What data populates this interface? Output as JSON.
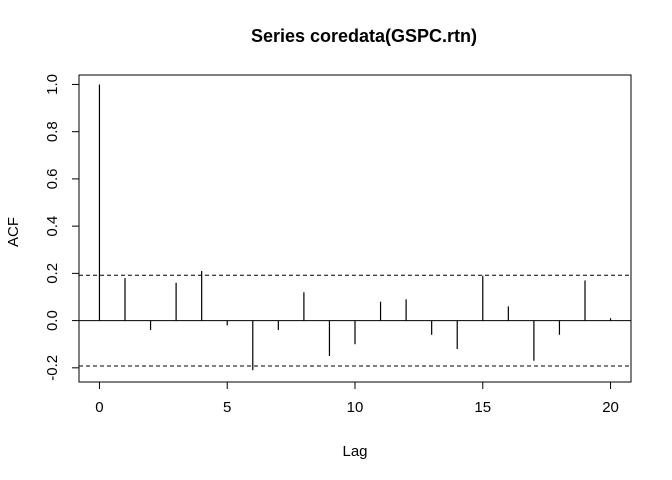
{
  "chart_data": {
    "type": "bar",
    "title": "Series  coredata(GSPC.rtn)",
    "xlabel": "Lag",
    "ylabel": "ACF",
    "x": [
      0,
      1,
      2,
      3,
      4,
      5,
      6,
      7,
      8,
      9,
      10,
      11,
      12,
      13,
      14,
      15,
      16,
      17,
      18,
      19,
      20
    ],
    "values": [
      1.0,
      0.18,
      -0.04,
      0.16,
      0.21,
      -0.02,
      -0.21,
      -0.04,
      0.12,
      -0.15,
      -0.1,
      0.08,
      0.09,
      -0.06,
      -0.12,
      0.19,
      0.06,
      -0.17,
      -0.06,
      0.17,
      0.01
    ],
    "confidence_bound": 0.192,
    "xlim": [
      -0.8,
      20.8
    ],
    "ylim": [
      -0.26,
      1.04
    ],
    "xticks": [
      0,
      5,
      10,
      15,
      20
    ],
    "yticks": [
      -0.2,
      0.0,
      0.2,
      0.4,
      0.6,
      0.8,
      1.0
    ],
    "xtick_labels": [
      "0",
      "5",
      "10",
      "15",
      "20"
    ],
    "ytick_labels": [
      "-0.2",
      "0.0",
      "0.2",
      "0.4",
      "0.6",
      "0.8",
      "1.0"
    ],
    "grid": false,
    "colors": {
      "bars": "#000000",
      "zero_line": "#000000",
      "confidence": "#000000"
    }
  }
}
